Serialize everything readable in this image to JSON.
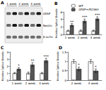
{
  "blot": {
    "panel": "A",
    "lanes": [
      "1 week",
      "2 week",
      "4 week"
    ],
    "bands": [
      "GFAP",
      "Nestin",
      "β-actin"
    ]
  },
  "chart_data": [
    {
      "type": "bar",
      "panel": "B",
      "ylabel": "Relative Optical Density",
      "categories": [
        "1 week",
        "2 week",
        "4 week"
      ],
      "series": [
        {
          "name": "WT",
          "color": "#ffffff",
          "values": [
            1,
            1,
            1
          ],
          "errors": [
            0.15,
            0.2,
            0.15
          ]
        },
        {
          "name": "GFAP+/R236H",
          "color": "#555555",
          "values": [
            2.5,
            3.6,
            4.2
          ],
          "errors": [
            0.4,
            0.5,
            0.5
          ]
        }
      ],
      "annotations": [
        {
          "category": "1 week",
          "text": "**"
        },
        {
          "category": "2 week",
          "text": "***"
        },
        {
          "category": "4 week",
          "text": "***"
        }
      ],
      "ylim": [
        0,
        6
      ],
      "yticks": [
        0,
        2,
        4,
        6
      ],
      "grid": false,
      "legend": "top"
    },
    {
      "type": "bar",
      "panel": "C",
      "ylabel": "Relative Optical Density",
      "categories": [
        "1 week",
        "2 week",
        "4 week"
      ],
      "series": [
        {
          "name": "WT",
          "color": "#ffffff",
          "values": [
            1,
            1,
            1
          ],
          "errors": [
            0.1,
            0.15,
            0.1
          ]
        },
        {
          "name": "GFAP+/R236H",
          "color": "#555555",
          "values": [
            1.6,
            2.2,
            2.8
          ],
          "errors": [
            0.2,
            0.3,
            0.3
          ]
        }
      ],
      "annotations": [
        {
          "category": "1 week",
          "text": "*"
        },
        {
          "category": "2 week",
          "text": "**"
        },
        {
          "category": "4 week",
          "text": "***"
        }
      ],
      "ylim": [
        0,
        4
      ],
      "yticks": [
        0,
        1,
        2,
        3,
        4
      ],
      "grid": false
    },
    {
      "type": "bar",
      "panel": "D",
      "ylabel": "Relative Optical Density",
      "categories": [
        "2 week",
        "4 week"
      ],
      "series": [
        {
          "name": "WT",
          "color": "#ffffff",
          "values": [
            1,
            1
          ],
          "errors": [
            0.1,
            0.1
          ]
        },
        {
          "name": "GFAP+/R236H",
          "color": "#555555",
          "values": [
            0.6,
            0.5
          ],
          "errors": [
            0.1,
            0.1
          ]
        }
      ],
      "annotations": [
        {
          "category": "2 week",
          "text": "*"
        },
        {
          "category": "4 week",
          "text": "*"
        }
      ],
      "ylim": [
        0,
        1.5
      ],
      "yticks": [
        0,
        0.5,
        1,
        1.5
      ],
      "grid": false
    }
  ]
}
